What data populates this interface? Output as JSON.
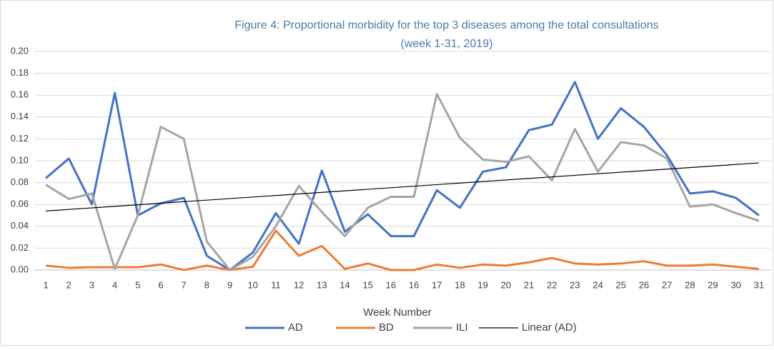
{
  "chart_data": {
    "type": "line",
    "title": "Figure 4: Proportional morbidity for the top 3 diseases among the total consultations",
    "subtitle": "(week 1-31, 2019)",
    "x_label": "Week Number",
    "categories": [
      "1",
      "2",
      "3",
      "4",
      "5",
      "6",
      "7",
      "8",
      "9",
      "10",
      "11",
      "12",
      "13",
      "14",
      "15",
      "16",
      "16",
      "17",
      "18",
      "19",
      "20",
      "21",
      "22",
      "23",
      "24",
      "25",
      "26",
      "27",
      "28",
      "29",
      "30",
      "31"
    ],
    "series": [
      {
        "name": "AD",
        "color": "#4472c4",
        "values": [
          0.084,
          0.102,
          0.06,
          0.162,
          0.05,
          0.061,
          0.066,
          0.013,
          0.0,
          0.016,
          0.052,
          0.024,
          0.091,
          0.035,
          0.051,
          0.031,
          0.031,
          0.073,
          0.057,
          0.09,
          0.094,
          0.128,
          0.133,
          0.172,
          0.12,
          0.148,
          0.131,
          0.105,
          0.07,
          0.072,
          0.066,
          0.05
        ]
      },
      {
        "name": "BD",
        "color": "#ed7d31",
        "values": [
          0.004,
          0.002,
          0.0025,
          0.0025,
          0.0025,
          0.005,
          0.0,
          0.004,
          0.0,
          0.003,
          0.036,
          0.013,
          0.022,
          0.001,
          0.006,
          0.0,
          0.0,
          0.005,
          0.002,
          0.005,
          0.004,
          0.007,
          0.011,
          0.006,
          0.005,
          0.006,
          0.008,
          0.004,
          0.004,
          0.005,
          0.003,
          0.001
        ]
      },
      {
        "name": "ILI",
        "color": "#a5a5a5",
        "values": [
          0.078,
          0.065,
          0.07,
          0.001,
          0.05,
          0.131,
          0.12,
          0.026,
          0.0,
          0.012,
          0.04,
          0.077,
          0.053,
          0.031,
          0.057,
          0.067,
          0.067,
          0.161,
          0.121,
          0.101,
          0.099,
          0.104,
          0.082,
          0.129,
          0.09,
          0.117,
          0.114,
          0.102,
          0.058,
          0.06,
          0.052,
          0.045
        ]
      }
    ],
    "trendline": {
      "name": "Linear (AD)",
      "color": "#000000",
      "values": [
        0.054,
        0.098
      ]
    },
    "ylim": [
      0,
      0.2
    ],
    "yticks": [
      {
        "value": 0,
        "label": "0.00"
      },
      {
        "value": 0.02,
        "label": "0.02"
      },
      {
        "value": 0.04,
        "label": "0.04"
      },
      {
        "value": 0.06,
        "label": "0.06"
      },
      {
        "value": 0.08,
        "label": "0.08"
      },
      {
        "value": 0.1,
        "label": "0.10"
      },
      {
        "value": 0.12,
        "label": "0.12"
      },
      {
        "value": 0.14,
        "label": "0.14"
      },
      {
        "value": 0.16,
        "label": "0.16"
      },
      {
        "value": 0.18,
        "label": "0.18"
      },
      {
        "value": 0.2,
        "label": "0.20"
      }
    ],
    "grid": true,
    "legend": "bottom"
  }
}
